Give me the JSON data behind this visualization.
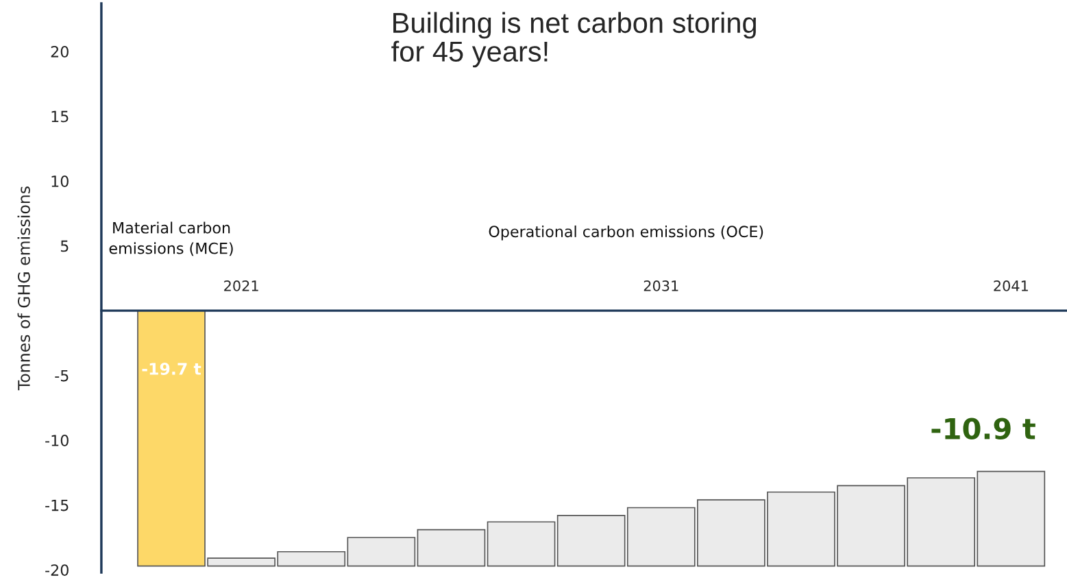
{
  "chart_data": {
    "type": "bar",
    "title": "Building is net carbon storing\nfor 45 years!",
    "ylabel": "Tonnes of GHG emissions",
    "categories": [
      null,
      "2021",
      null,
      null,
      null,
      null,
      null,
      "2031",
      null,
      null,
      null,
      null,
      "2041"
    ],
    "values": [
      -19.7,
      0.6,
      1.1,
      2.2,
      2.8,
      3.4,
      3.9,
      4.5,
      5.1,
      5.7,
      6.2,
      6.8,
      7.3
    ],
    "base": [
      0,
      -19.7,
      -19.7,
      -19.7,
      -19.7,
      -19.7,
      -19.7,
      -19.7,
      -19.7,
      -19.7,
      -19.7,
      -19.7,
      -19.7
    ],
    "colors": [
      "#fdd868",
      "#ebebeb",
      "#ebebeb",
      "#ebebeb",
      "#ebebeb",
      "#ebebeb",
      "#ebebeb",
      "#ebebeb",
      "#ebebeb",
      "#ebebeb",
      "#ebebeb",
      "#ebebeb",
      "#ebebeb"
    ],
    "value_labels": [
      "-19.7 t",
      null,
      null,
      null,
      null,
      null,
      null,
      null,
      null,
      null,
      null,
      null,
      null
    ],
    "annotations": [
      "Material carbon\nemissions (MCE)",
      "Operational carbon emissions (OCE)",
      "-10.9 t"
    ],
    "ylim": [
      -20.2,
      23.7
    ],
    "yticks": [
      -20,
      -15,
      -10,
      -5,
      5,
      10,
      15,
      20
    ],
    "grid": false,
    "legend": false
  }
}
